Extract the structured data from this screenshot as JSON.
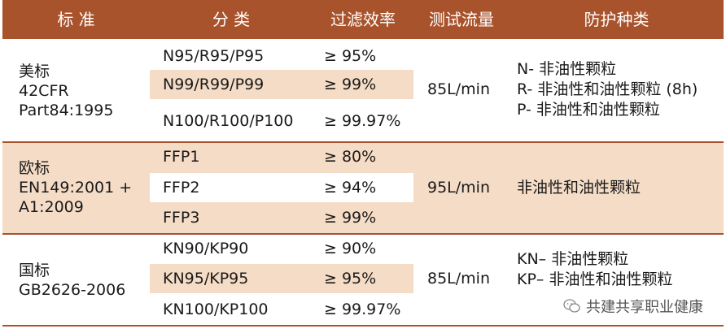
{
  "header": {
    "standard": "标 准",
    "category": "分 类",
    "efficiency": "过滤效率",
    "flow": "测试流量",
    "protection": "防护种类"
  },
  "groups": [
    {
      "standard": [
        "美标",
        "42CFR",
        "Part84:1995"
      ],
      "rows": [
        {
          "category": "N95/R95/P95",
          "efficiency": "≥ 95%"
        },
        {
          "category": "N99/R99/P99",
          "efficiency": "≥ 99%"
        },
        {
          "category": "N100/R100/P100",
          "efficiency": "≥ 99.97%"
        }
      ],
      "flow": "85L/min",
      "protection": [
        "N- 非油性颗粒",
        "R- 非油性和油性颗粒 (8h)",
        "P- 非油性和油性颗粒"
      ]
    },
    {
      "standard": [
        "欧标",
        "EN149:2001 +",
        "A1:2009"
      ],
      "rows": [
        {
          "category": "FFP1",
          "efficiency": "≥ 80%"
        },
        {
          "category": "FFP2",
          "efficiency": "≥ 94%"
        },
        {
          "category": "FFP3",
          "efficiency": "≥ 99%"
        }
      ],
      "flow": "95L/min",
      "protection": [
        "非油性和油性颗粒"
      ]
    },
    {
      "standard": [
        "国标",
        "GB2626-2006"
      ],
      "rows": [
        {
          "category": "KN90/KP90",
          "efficiency": "≥ 90%"
        },
        {
          "category": "KN95/KP95",
          "efficiency": "≥ 95%"
        },
        {
          "category": "KN100/KP100",
          "efficiency": "≥ 99.97%"
        }
      ],
      "flow": "85L/min",
      "protection": [
        "KN– 非油性颗粒",
        "KP– 非油性和油性颗粒"
      ]
    }
  ],
  "watermark": "共建共享职业健康",
  "colors": {
    "header": "#a9532c",
    "stripe": "#f5dcc6",
    "band": "#f5dcc6"
  }
}
